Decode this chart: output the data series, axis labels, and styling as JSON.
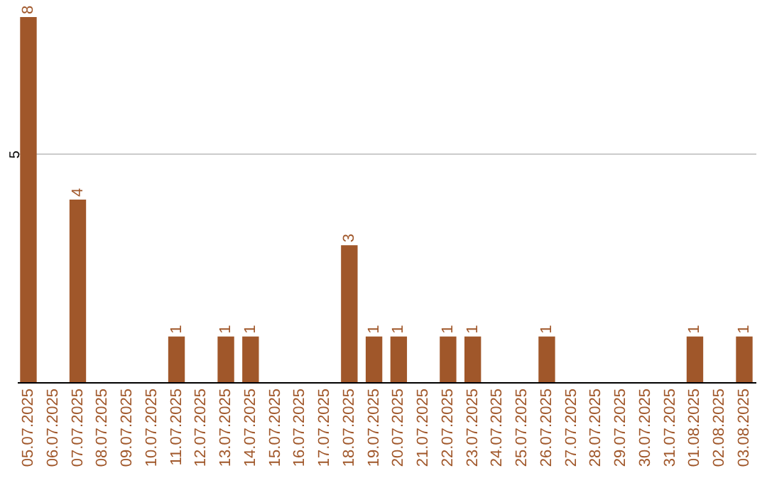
{
  "chart_data": {
    "type": "bar",
    "categories": [
      "05.07.2025",
      "06.07.2025",
      "07.07.2025",
      "08.07.2025",
      "09.07.2025",
      "10.07.2025",
      "11.07.2025",
      "12.07.2025",
      "13.07.2025",
      "14.07.2025",
      "15.07.2025",
      "16.07.2025",
      "17.07.2025",
      "18.07.2025",
      "19.07.2025",
      "20.07.2025",
      "21.07.2025",
      "22.07.2025",
      "23.07.2025",
      "24.07.2025",
      "25.07.2025",
      "26.07.2025",
      "27.07.2025",
      "28.07.2025",
      "29.07.2025",
      "30.07.2025",
      "31.07.2025",
      "01.08.2025",
      "02.08.2025",
      "03.08.2025"
    ],
    "values": [
      8,
      0,
      4,
      0,
      0,
      0,
      1,
      0,
      1,
      1,
      0,
      0,
      0,
      3,
      1,
      1,
      0,
      1,
      1,
      0,
      0,
      1,
      0,
      0,
      0,
      0,
      0,
      1,
      0,
      1
    ],
    "value_labels": [
      "8",
      null,
      "4",
      null,
      null,
      null,
      "1",
      null,
      "1",
      "1",
      null,
      null,
      null,
      "3",
      "1",
      "1",
      null,
      "1",
      "1",
      null,
      null,
      "1",
      null,
      null,
      null,
      null,
      null,
      "1",
      null,
      "1"
    ],
    "color": "#a0572a",
    "ylim": [
      0,
      8
    ],
    "yticks": [
      5
    ],
    "grid": "y"
  }
}
